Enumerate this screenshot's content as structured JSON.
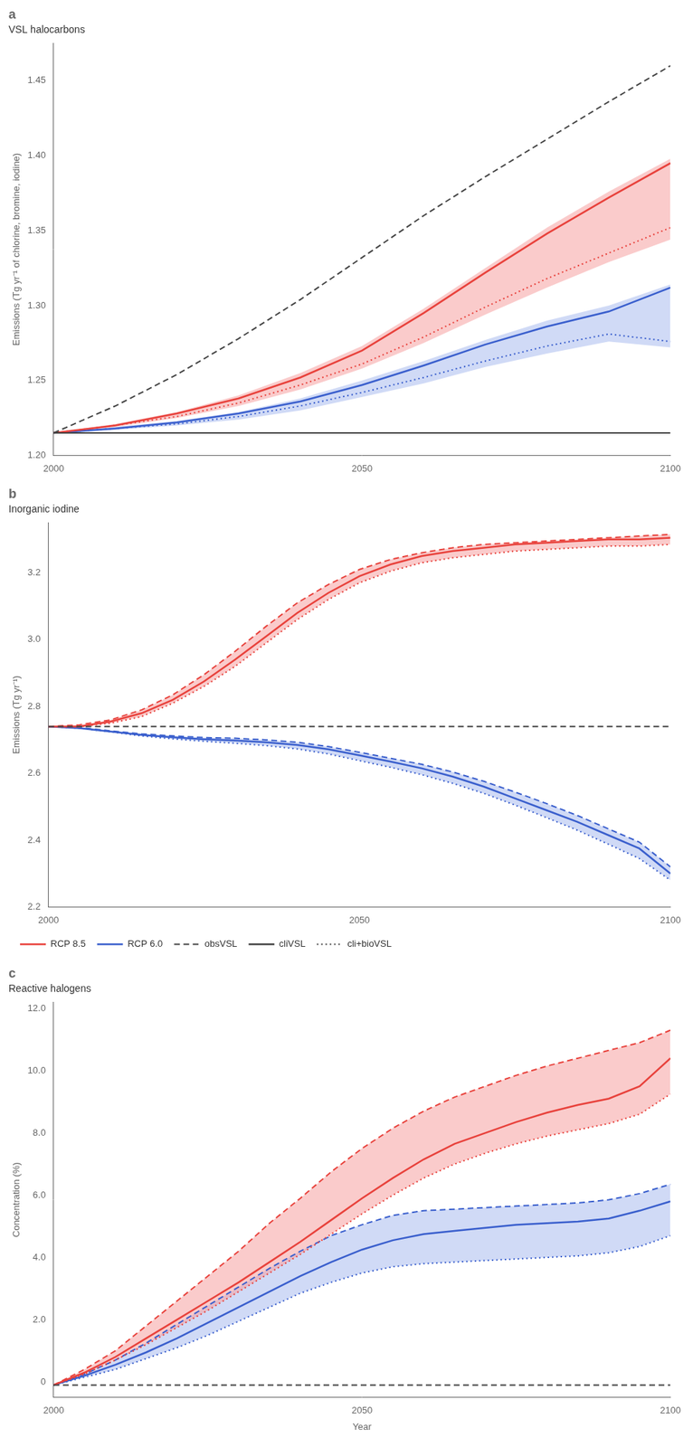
{
  "chart_data": [
    {
      "type": "line",
      "title": "a",
      "subtitle": "VSL halocarbons",
      "ylabel": "Emissions (Tg yr⁻¹ of chlorine, bromine, iodine)",
      "xlim": [
        2000,
        2100
      ],
      "xticks": [
        2000,
        2050,
        2100
      ],
      "ylim": [
        1.2,
        1.475
      ],
      "yticks": [
        {
          "value": 1.2,
          "label": "1.20"
        },
        1.25,
        {
          "value": 1.3,
          "label": "1.30"
        },
        1.35,
        {
          "value": 1.4,
          "label": "1.40"
        },
        1.45
      ],
      "grid": false,
      "legend": false,
      "x": [
        2000,
        2010,
        2020,
        2030,
        2040,
        2050,
        2060,
        2070,
        2080,
        2090,
        2100
      ],
      "bands": [
        {
          "color": "#F5A0A0",
          "lower": [
            1.215,
            1.219,
            1.225,
            1.233,
            1.244,
            1.258,
            1.275,
            1.294,
            1.312,
            1.329,
            1.344
          ],
          "upper": [
            1.215,
            1.221,
            1.229,
            1.24,
            1.255,
            1.273,
            1.298,
            1.325,
            1.352,
            1.376,
            1.398
          ]
        },
        {
          "color": "#AABBEE",
          "lower": [
            1.215,
            1.217,
            1.22,
            1.224,
            1.23,
            1.239,
            1.248,
            1.259,
            1.268,
            1.276,
            1.272
          ],
          "upper": [
            1.215,
            1.219,
            1.223,
            1.229,
            1.238,
            1.25,
            1.263,
            1.277,
            1.29,
            1.3,
            1.314
          ]
        }
      ],
      "hlines": [
        {
          "y": 1.215,
          "color": "#444444",
          "line_style": "solid"
        }
      ],
      "series": [
        {
          "color": "#444444",
          "line_style": "dashed",
          "values": [
            1.215,
            1.233,
            1.254,
            1.278,
            1.304,
            1.332,
            1.36,
            1.386,
            1.411,
            1.436,
            1.46
          ]
        },
        {
          "color": "#E8423C",
          "line_style": "solid",
          "values": [
            1.215,
            1.22,
            1.228,
            1.238,
            1.252,
            1.27,
            1.295,
            1.322,
            1.348,
            1.372,
            1.395
          ]
        },
        {
          "color": "#E8423C",
          "line_style": "dotted",
          "values": [
            1.215,
            1.22,
            1.226,
            1.235,
            1.247,
            1.261,
            1.279,
            1.299,
            1.318,
            1.335,
            1.352
          ]
        },
        {
          "color": "#3A5FCD",
          "line_style": "solid",
          "values": [
            1.215,
            1.218,
            1.222,
            1.228,
            1.236,
            1.247,
            1.26,
            1.274,
            1.286,
            1.296,
            1.312
          ]
        },
        {
          "color": "#3A5FCD",
          "line_style": "dotted",
          "values": [
            1.215,
            1.218,
            1.221,
            1.226,
            1.233,
            1.242,
            1.252,
            1.263,
            1.273,
            1.281,
            1.276
          ]
        }
      ]
    },
    {
      "type": "line",
      "title": "b",
      "subtitle": "Inorganic iodine",
      "ylabel": "Emissions (Tg yr⁻¹)",
      "xlim": [
        2000,
        2100
      ],
      "xticks": [
        2000,
        2050,
        2100
      ],
      "ylim": [
        2.2,
        3.35
      ],
      "yticks": [
        2.2,
        2.4,
        2.6,
        2.8,
        {
          "value": 3.0,
          "label": "3.0"
        },
        3.2
      ],
      "grid": false,
      "legend": "bottom",
      "legend_entries": [
        {
          "name": "RCP 8.5",
          "color": "#E8423C",
          "line_style": "solid"
        },
        {
          "name": "RCP 6.0",
          "color": "#3A5FCD",
          "line_style": "solid"
        },
        {
          "name": "obsVSL",
          "color": "#444444",
          "line_style": "dashed"
        },
        {
          "name": "cliVSL",
          "color": "#444444",
          "line_style": "solid"
        },
        {
          "name": "cli+bioVSL",
          "color": "#444444",
          "line_style": "dotted"
        }
      ],
      "x": [
        2000,
        2005,
        2010,
        2015,
        2020,
        2025,
        2030,
        2035,
        2040,
        2045,
        2050,
        2055,
        2060,
        2065,
        2070,
        2075,
        2080,
        2085,
        2090,
        2095,
        2100
      ],
      "bands": [
        {
          "color": "#F5A0A0",
          "lower": [
            2.74,
            2.74,
            2.75,
            2.77,
            2.81,
            2.86,
            2.92,
            2.99,
            3.06,
            3.12,
            3.17,
            3.205,
            3.23,
            3.245,
            3.255,
            3.265,
            3.27,
            3.275,
            3.28,
            3.28,
            3.285
          ],
          "upper": [
            2.74,
            2.745,
            2.76,
            2.79,
            2.835,
            2.895,
            2.965,
            3.04,
            3.11,
            3.165,
            3.21,
            3.24,
            3.26,
            3.275,
            3.285,
            3.29,
            3.295,
            3.3,
            3.305,
            3.31,
            3.315
          ]
        },
        {
          "color": "#AABBEE",
          "lower": [
            2.74,
            2.735,
            2.724,
            2.712,
            2.703,
            2.696,
            2.69,
            2.683,
            2.673,
            2.658,
            2.638,
            2.618,
            2.596,
            2.57,
            2.54,
            2.505,
            2.468,
            2.43,
            2.388,
            2.345,
            2.28
          ],
          "upper": [
            2.74,
            2.737,
            2.727,
            2.718,
            2.712,
            2.707,
            2.705,
            2.7,
            2.693,
            2.68,
            2.663,
            2.645,
            2.627,
            2.604,
            2.576,
            2.544,
            2.51,
            2.474,
            2.434,
            2.394,
            2.32
          ]
        }
      ],
      "hlines": [
        {
          "y": 2.74,
          "color": "#444444",
          "line_style": "dashed"
        }
      ],
      "series": [
        {
          "color": "#E8423C",
          "line_style": "solid",
          "values": [
            2.74,
            2.74,
            2.755,
            2.78,
            2.82,
            2.875,
            2.94,
            3.01,
            3.08,
            3.14,
            3.19,
            3.225,
            3.25,
            3.265,
            3.275,
            3.285,
            3.29,
            3.295,
            3.3,
            3.3,
            3.305
          ]
        },
        {
          "color": "#E8423C",
          "line_style": "dotted",
          "values": [
            2.74,
            2.74,
            2.75,
            2.77,
            2.81,
            2.86,
            2.92,
            2.99,
            3.06,
            3.12,
            3.17,
            3.205,
            3.23,
            3.245,
            3.255,
            3.265,
            3.27,
            3.275,
            3.28,
            3.28,
            3.285
          ]
        },
        {
          "color": "#E8423C",
          "line_style": "dashed",
          "values": [
            2.74,
            2.745,
            2.76,
            2.79,
            2.835,
            2.895,
            2.965,
            3.04,
            3.11,
            3.165,
            3.21,
            3.24,
            3.26,
            3.275,
            3.285,
            3.29,
            3.295,
            3.3,
            3.305,
            3.31,
            3.315
          ]
        },
        {
          "color": "#3A5FCD",
          "line_style": "solid",
          "values": [
            2.74,
            2.735,
            2.725,
            2.715,
            2.708,
            2.702,
            2.698,
            2.693,
            2.685,
            2.672,
            2.654,
            2.635,
            2.615,
            2.59,
            2.56,
            2.525,
            2.49,
            2.455,
            2.415,
            2.375,
            2.3
          ]
        },
        {
          "color": "#3A5FCD",
          "line_style": "dotted",
          "values": [
            2.74,
            2.735,
            2.724,
            2.712,
            2.703,
            2.696,
            2.69,
            2.683,
            2.673,
            2.658,
            2.638,
            2.618,
            2.596,
            2.57,
            2.54,
            2.505,
            2.468,
            2.43,
            2.388,
            2.345,
            2.28
          ]
        },
        {
          "color": "#3A5FCD",
          "line_style": "dashed",
          "values": [
            2.74,
            2.737,
            2.727,
            2.718,
            2.712,
            2.707,
            2.705,
            2.7,
            2.693,
            2.68,
            2.663,
            2.645,
            2.627,
            2.604,
            2.576,
            2.544,
            2.51,
            2.474,
            2.434,
            2.394,
            2.32
          ]
        }
      ]
    },
    {
      "type": "line",
      "title": "c",
      "subtitle": "Reactive halogens",
      "ylabel": "Concentration (%)",
      "xlabel": "Year",
      "xlim": [
        2000,
        2100
      ],
      "xticks": [
        2000,
        2050,
        2100
      ],
      "ylim": [
        -0.5,
        12.2
      ],
      "yticks": [
        0,
        {
          "value": 2.0,
          "label": "2.0"
        },
        {
          "value": 4.0,
          "label": "4.0"
        },
        {
          "value": 6.0,
          "label": "6.0"
        },
        {
          "value": 8.0,
          "label": "8.0"
        },
        {
          "value": 10.0,
          "label": "10.0"
        },
        {
          "value": 12.0,
          "label": "12.0"
        }
      ],
      "grid": false,
      "legend": false,
      "x": [
        2000,
        2005,
        2010,
        2015,
        2020,
        2025,
        2030,
        2035,
        2040,
        2045,
        2050,
        2055,
        2060,
        2065,
        2070,
        2075,
        2080,
        2085,
        2090,
        2095,
        2100
      ],
      "bands": [
        {
          "color": "#F5A0A0",
          "lower": [
            -0.1,
            0.25,
            0.7,
            1.2,
            1.75,
            2.3,
            2.9,
            3.5,
            4.1,
            4.75,
            5.4,
            6.0,
            6.55,
            7.0,
            7.35,
            7.65,
            7.9,
            8.1,
            8.3,
            8.6,
            9.25
          ],
          "upper": [
            -0.1,
            0.4,
            1.0,
            1.8,
            2.6,
            3.4,
            4.2,
            5.1,
            5.9,
            6.75,
            7.5,
            8.15,
            8.7,
            9.15,
            9.5,
            9.85,
            10.15,
            10.4,
            10.65,
            10.9,
            11.3
          ]
        },
        {
          "color": "#AABBEE",
          "lower": [
            -0.1,
            0.15,
            0.4,
            0.75,
            1.1,
            1.5,
            1.95,
            2.4,
            2.85,
            3.2,
            3.5,
            3.7,
            3.8,
            3.85,
            3.9,
            3.95,
            4.0,
            4.05,
            4.15,
            4.35,
            4.7
          ],
          "upper": [
            -0.1,
            0.25,
            0.7,
            1.25,
            1.85,
            2.45,
            3.05,
            3.65,
            4.2,
            4.7,
            5.05,
            5.35,
            5.5,
            5.55,
            5.6,
            5.65,
            5.7,
            5.75,
            5.85,
            6.05,
            6.35
          ]
        }
      ],
      "hlines": [
        {
          "y": -0.1,
          "color": "#444444",
          "line_style": "dashed"
        }
      ],
      "series": [
        {
          "color": "#E8423C",
          "line_style": "solid",
          "values": [
            -0.1,
            0.3,
            0.8,
            1.4,
            2.0,
            2.6,
            3.2,
            3.85,
            4.5,
            5.2,
            5.9,
            6.55,
            7.15,
            7.65,
            8.0,
            8.35,
            8.65,
            8.9,
            9.1,
            9.5,
            10.4
          ]
        },
        {
          "color": "#E8423C",
          "line_style": "dotted",
          "values": [
            -0.1,
            0.25,
            0.7,
            1.2,
            1.75,
            2.3,
            2.9,
            3.5,
            4.1,
            4.75,
            5.4,
            6.0,
            6.55,
            7.0,
            7.35,
            7.65,
            7.9,
            8.1,
            8.3,
            8.6,
            9.25
          ]
        },
        {
          "color": "#E8423C",
          "line_style": "dashed",
          "values": [
            -0.1,
            0.4,
            1.0,
            1.8,
            2.6,
            3.4,
            4.2,
            5.1,
            5.9,
            6.75,
            7.5,
            8.15,
            8.7,
            9.15,
            9.5,
            9.85,
            10.15,
            10.4,
            10.65,
            10.9,
            11.3
          ]
        },
        {
          "color": "#3A5FCD",
          "line_style": "solid",
          "values": [
            -0.1,
            0.2,
            0.55,
            0.95,
            1.4,
            1.9,
            2.4,
            2.9,
            3.4,
            3.85,
            4.25,
            4.55,
            4.75,
            4.85,
            4.95,
            5.05,
            5.1,
            5.15,
            5.25,
            5.5,
            5.8
          ]
        },
        {
          "color": "#3A5FCD",
          "line_style": "dotted",
          "values": [
            -0.1,
            0.15,
            0.4,
            0.75,
            1.1,
            1.5,
            1.95,
            2.4,
            2.85,
            3.2,
            3.5,
            3.7,
            3.8,
            3.85,
            3.9,
            3.95,
            4.0,
            4.05,
            4.15,
            4.35,
            4.7
          ]
        },
        {
          "color": "#3A5FCD",
          "line_style": "dashed",
          "values": [
            -0.1,
            0.25,
            0.7,
            1.25,
            1.85,
            2.45,
            3.05,
            3.65,
            4.2,
            4.7,
            5.05,
            5.35,
            5.5,
            5.55,
            5.6,
            5.65,
            5.7,
            5.75,
            5.85,
            6.05,
            6.35
          ]
        }
      ]
    }
  ]
}
